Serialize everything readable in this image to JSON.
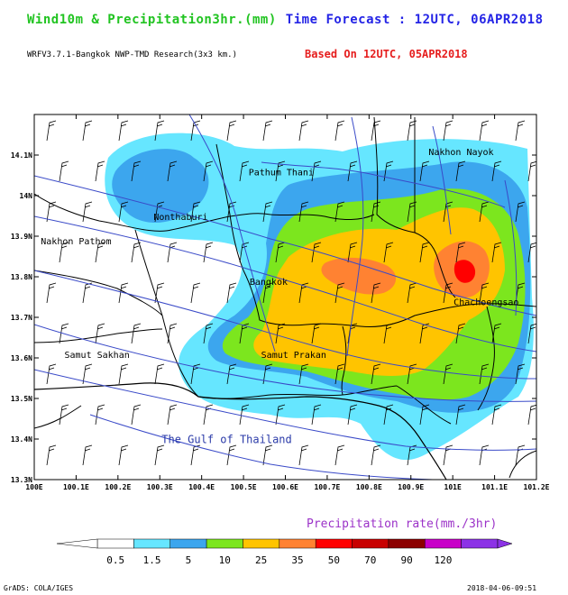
{
  "header": {
    "title_left": "Wind10m & Precipitation3hr.(mm)",
    "title_right": "Time Forecast : 12UTC, 06APR2018",
    "subtitle": "WRFV3.7.1-Bangkok NWP-TMD Research(3x3 km.)",
    "based_on": "Based On 12UTC, 05APR2018"
  },
  "map": {
    "lon_ticks": [
      "100E",
      "100.1E",
      "100.2E",
      "100.3E",
      "100.4E",
      "100.5E",
      "100.6E",
      "100.7E",
      "100.8E",
      "100.9E",
      "101E",
      "101.1E",
      "101.2E"
    ],
    "lat_ticks": [
      "13.3N",
      "13.4N",
      "13.5N",
      "13.6N",
      "13.7N",
      "13.8N",
      "13.9N",
      "14N",
      "14.1N"
    ],
    "lon_range": [
      100.0,
      101.2
    ],
    "lat_range": [
      13.3,
      14.2
    ],
    "places": [
      {
        "name": "Nakhon Nayok",
        "lon": 101.02,
        "lat": 14.1
      },
      {
        "name": "Pathum Thani",
        "lon": 100.59,
        "lat": 14.05
      },
      {
        "name": "Nonthaburi",
        "lon": 100.35,
        "lat": 13.94
      },
      {
        "name": "Nakhon Pathom",
        "lon": 100.1,
        "lat": 13.88
      },
      {
        "name": "Bangkok",
        "lon": 100.56,
        "lat": 13.78
      },
      {
        "name": "Chachoengsao",
        "lon": 101.08,
        "lat": 13.73
      },
      {
        "name": "Samut Sakhan",
        "lon": 100.15,
        "lat": 13.6
      },
      {
        "name": "Samut Prakan",
        "lon": 100.62,
        "lat": 13.6
      }
    ],
    "sea_label": "The Gulf of Thailand",
    "sea_label_pos": {
      "lon": 100.46,
      "lat": 13.39
    }
  },
  "legend": {
    "title": "Precipitation rate(mm./3hr)",
    "labels": [
      "0.5",
      "1.5",
      "5",
      "10",
      "25",
      "35",
      "50",
      "70",
      "90",
      "120"
    ],
    "colors": [
      "#ffffff",
      "#66e6ff",
      "#3ca6ee",
      "#7ce61e",
      "#ffc400",
      "#ff8232",
      "#ff0000",
      "#c80000",
      "#8c0000",
      "#c800c8",
      "#8c32e6"
    ]
  },
  "footer": {
    "left": "GrADS: COLA/IGES",
    "right": "2018-04-06-09:51"
  }
}
